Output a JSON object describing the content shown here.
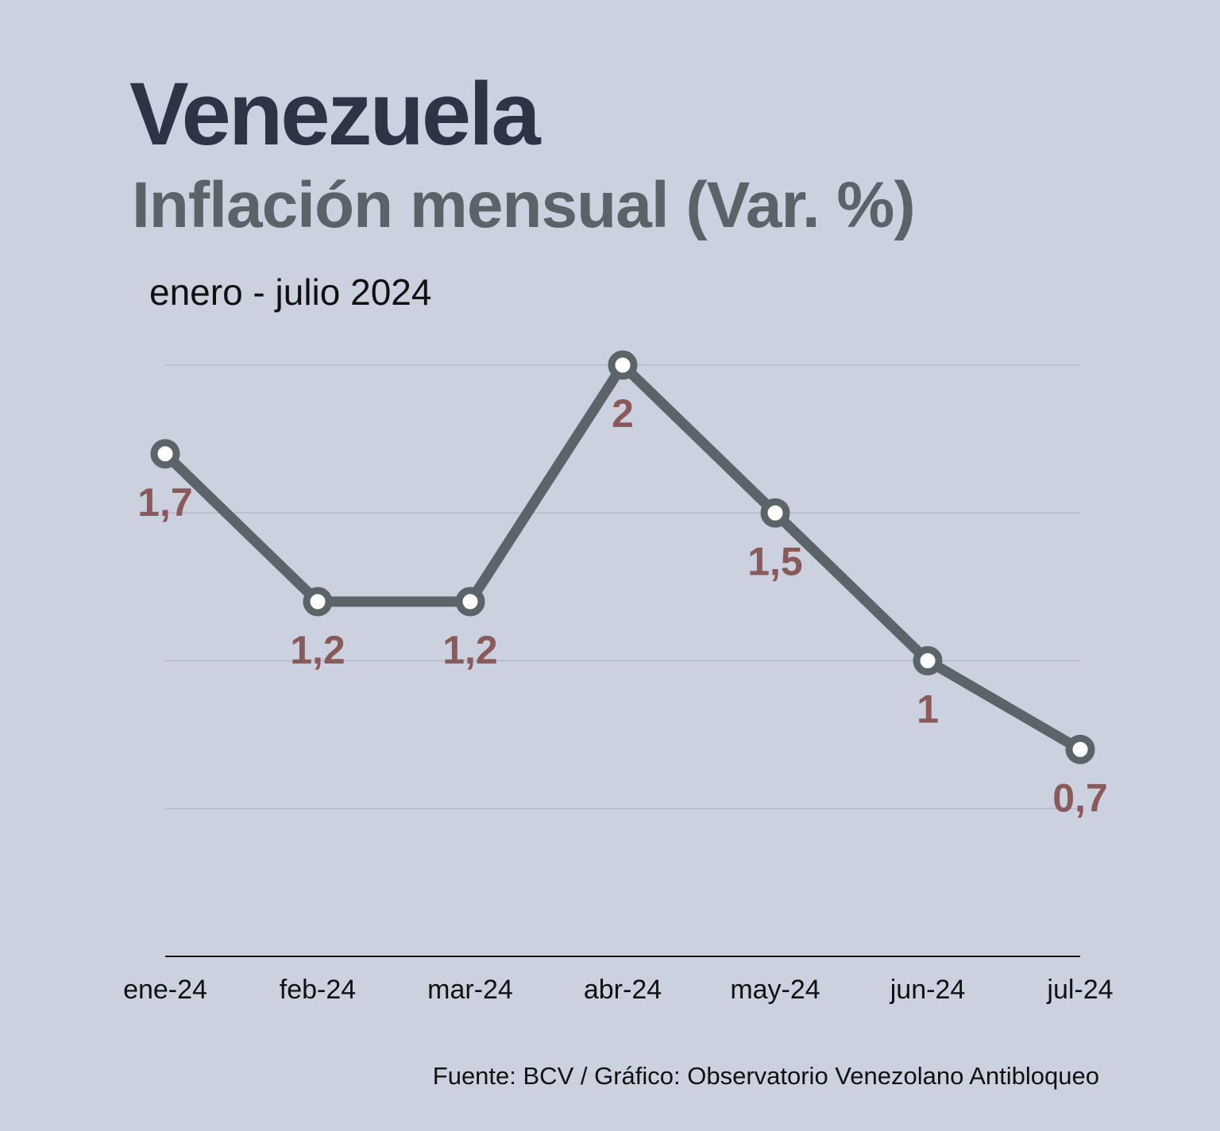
{
  "chart_data": {
    "type": "line",
    "title": "Venezuela",
    "subtitle": "Inflación mensual (Var. %)",
    "period": "enero - julio 2024",
    "categories": [
      "ene-24",
      "feb-24",
      "mar-24",
      "abr-24",
      "may-24",
      "jun-24",
      "jul-24"
    ],
    "series": [
      {
        "values": [
          1.7,
          1.2,
          1.2,
          2,
          1.5,
          1,
          0.7
        ],
        "labels": [
          "1,7",
          "1,2",
          "1,2",
          "2",
          "1,5",
          "1",
          "0,7"
        ]
      }
    ],
    "ylim": [
      0,
      2
    ],
    "gridlines": [
      0.5,
      1,
      1.5,
      2
    ],
    "grid": true,
    "colors": {
      "background": "#cbd1df",
      "line": "#5b6569",
      "marker_fill": "#ffffff",
      "data_label": "#8a5a5b",
      "gridline": "#b9b8c8",
      "axis": "#111111"
    },
    "source": "Fuente: BCV / Gráfico: Observatorio Venezolano Antibloqueo"
  }
}
